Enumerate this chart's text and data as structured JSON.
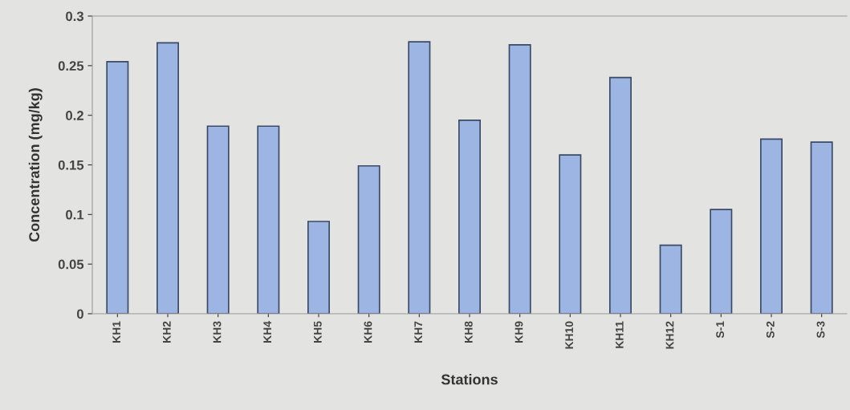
{
  "chart_data": {
    "type": "bar",
    "xlabel": "Stations",
    "ylabel": "Concentration (mg/kg)",
    "categories": [
      "KH1",
      "KH2",
      "KH3",
      "KH4",
      "KH5",
      "KH6",
      "KH7",
      "KH8",
      "KH9",
      "KH10",
      "KH11",
      "KH12",
      "S-1",
      "S-2",
      "S-3"
    ],
    "values": [
      0.254,
      0.273,
      0.189,
      0.189,
      0.093,
      0.149,
      0.274,
      0.195,
      0.271,
      0.16,
      0.238,
      0.069,
      0.105,
      0.176,
      0.173
    ],
    "color": "#9db5e2",
    "ylim": [
      0,
      0.3
    ],
    "yticks": [
      0,
      0.05,
      0.1,
      0.15,
      0.2,
      0.25,
      0.3
    ],
    "grid": false
  }
}
